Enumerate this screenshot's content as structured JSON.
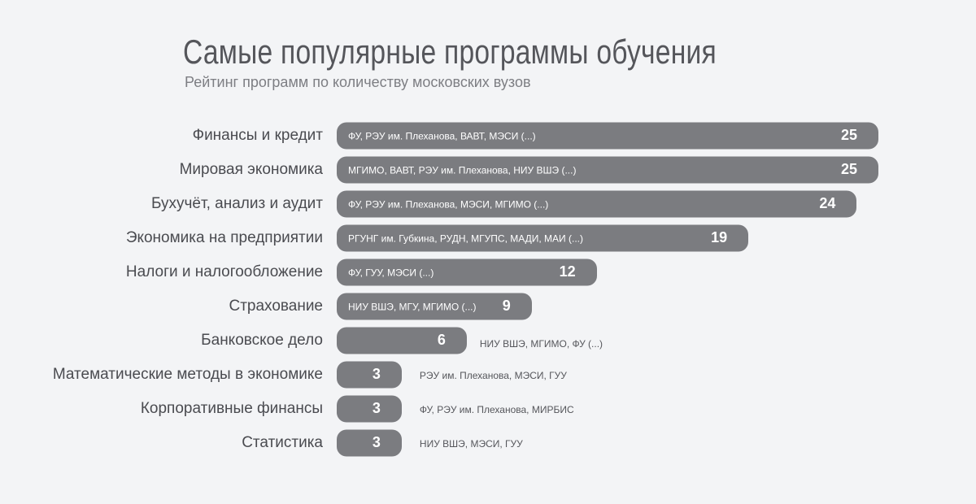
{
  "chart_data": {
    "type": "bar",
    "orientation": "horizontal",
    "title": "Самые популярные программы обучения",
    "subtitle": "Рейтинг программ по количеству московских вузов",
    "xlabel": "",
    "ylabel": "",
    "xlim": [
      0,
      25
    ],
    "grid": false,
    "colors": {
      "bar": "#7b7c80",
      "background": "#f3f4f6",
      "label": "#4a4b50"
    },
    "categories": [
      "Финансы и кредит",
      "Мировая экономика",
      "Бухучёт, анализ и аудит",
      "Экономика на предприятии",
      "Налоги и налогообложение",
      "Страхование",
      "Банковское дело",
      "Математические методы в экономике",
      "Корпоративные финансы",
      "Статистика"
    ],
    "values": [
      25,
      25,
      24,
      19,
      12,
      9,
      6,
      3,
      3,
      3
    ],
    "annotations": [
      "ФУ, РЭУ им. Плеханова, ВАВТ, МЭСИ (...)",
      "МГИМО, ВАВТ, РЭУ им. Плеханова, НИУ ВШЭ  (...)",
      "ФУ, РЭУ им. Плеханова, МЭСИ, МГИМО (...)",
      "РГУНГ им. Губкина, РУДН, МГУПС, МАДИ, МАИ (...)",
      "ФУ, ГУУ, МЭСИ (...)",
      "НИУ ВШЭ, МГУ, МГИМО (...)",
      "НИУ ВШЭ, МГИМО, ФУ (...)",
      "РЭУ им. Плеханова, МЭСИ, ГУУ",
      "ФУ, РЭУ им. Плеханова, МИРБИС",
      "НИУ ВШЭ, МЭСИ, ГУУ"
    ]
  }
}
